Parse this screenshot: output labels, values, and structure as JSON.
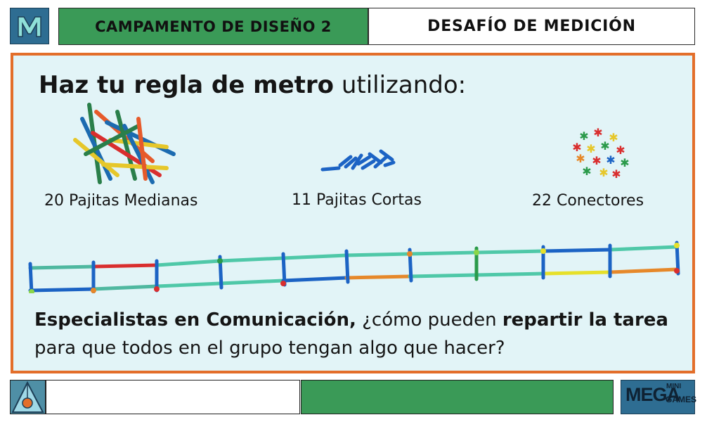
{
  "header": {
    "logo_letter": "M",
    "camp_title": "CAMPAMENTO DE DISEÑO 2",
    "challenge_title": "DESAFÍO DE MEDICIÓN"
  },
  "main": {
    "headline_bold": "Haz tu regla de metro",
    "headline_rest": " utilizando:",
    "materials": [
      {
        "label": "20 Pajitas Medianas",
        "icon": "medium-straws-pile-icon"
      },
      {
        "label": "11 Pajitas Cortas",
        "icon": "short-straws-pile-icon"
      },
      {
        "label": "22 Conectores",
        "icon": "connectors-pile-icon"
      }
    ],
    "question": {
      "part1_bold": "Especialistas en Comunicación,",
      "part2": " ¿cómo pueden ",
      "part3_bold": "repartir la tarea",
      "part4": " para que todos en el grupo tengan algo que hacer?"
    }
  },
  "footer": {
    "brand_main": "MEGA",
    "brand_sup": "MINI",
    "brand_sub": "GAMES"
  },
  "colors": {
    "accent_orange": "#e36e2a",
    "panel_bg": "#e2f4f7",
    "green": "#3a9a57",
    "blue": "#2e6d92"
  }
}
